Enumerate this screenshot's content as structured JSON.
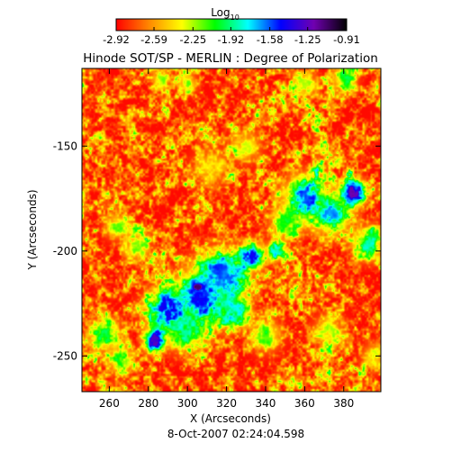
{
  "chart_data": {
    "type": "heatmap",
    "title": "Hinode SOT/SP - MERLIN : Degree of Polarization",
    "xlabel": "X (Arcseconds)",
    "ylabel": "Y (Arcseconds)",
    "footer": "8-Oct-2007 02:24:04.598",
    "colorbar": {
      "label_main": "Log",
      "label_sub": "10",
      "range": [
        -2.92,
        -0.91
      ],
      "tick_values": [
        -2.92,
        -2.59,
        -2.25,
        -1.92,
        -1.58,
        -1.25,
        -0.91
      ],
      "tick_labels": [
        "-2.92",
        "-2.59",
        "-2.25",
        "-1.92",
        "-1.58",
        "-1.25",
        "-0.91"
      ],
      "colormap": [
        "#ff0000",
        "#ff8800",
        "#ffff00",
        "#00ff00",
        "#00ffff",
        "#0000ff",
        "#7000b0",
        "#000000"
      ]
    },
    "xlim": [
      246,
      399
    ],
    "ylim": [
      -267,
      -113
    ],
    "x_ticks": [
      260,
      280,
      300,
      320,
      340,
      360,
      380
    ],
    "x_tick_labels": [
      "260",
      "280",
      "300",
      "320",
      "340",
      "360",
      "380"
    ],
    "y_ticks": [
      -150,
      -200,
      -250
    ],
    "y_tick_labels": [
      "-150",
      "-200",
      "-250"
    ],
    "background_level": -2.9,
    "features": [
      {
        "x": 305,
        "y": -217,
        "level": -0.95,
        "radius": 2.2
      },
      {
        "x": 290,
        "y": -228,
        "level": -1.3,
        "radius": 7
      },
      {
        "x": 308,
        "y": -222,
        "level": -1.35,
        "radius": 9
      },
      {
        "x": 318,
        "y": -212,
        "level": -1.45,
        "radius": 8
      },
      {
        "x": 333,
        "y": -202,
        "level": -1.3,
        "radius": 4
      },
      {
        "x": 345,
        "y": -200,
        "level": -1.6,
        "radius": 3
      },
      {
        "x": 324,
        "y": -228,
        "level": -1.6,
        "radius": 5
      },
      {
        "x": 283,
        "y": -242,
        "level": -1.15,
        "radius": 3.5
      },
      {
        "x": 298,
        "y": -238,
        "level": -1.7,
        "radius": 6
      },
      {
        "x": 360,
        "y": -175,
        "level": -1.4,
        "radius": 7
      },
      {
        "x": 374,
        "y": -182,
        "level": -1.5,
        "radius": 6
      },
      {
        "x": 385,
        "y": -172,
        "level": -1.05,
        "radius": 4
      },
      {
        "x": 392,
        "y": -196,
        "level": -1.7,
        "radius": 5
      },
      {
        "x": 350,
        "y": -186,
        "level": -1.9,
        "radius": 5
      },
      {
        "x": 258,
        "y": -240,
        "level": -1.85,
        "radius": 5
      },
      {
        "x": 266,
        "y": -252,
        "level": -1.9,
        "radius": 4
      },
      {
        "x": 360,
        "y": -120,
        "level": -2.1,
        "radius": 4
      },
      {
        "x": 380,
        "y": -118,
        "level": -1.9,
        "radius": 4
      },
      {
        "x": 300,
        "y": -120,
        "level": -2.0,
        "radius": 3
      },
      {
        "x": 286,
        "y": -118,
        "level": -2.05,
        "radius": 3
      },
      {
        "x": 264,
        "y": -188,
        "level": -2.0,
        "radius": 4
      },
      {
        "x": 274,
        "y": -198,
        "level": -2.05,
        "radius": 4
      },
      {
        "x": 330,
        "y": -150,
        "level": -2.15,
        "radius": 5
      },
      {
        "x": 312,
        "y": -160,
        "level": -2.2,
        "radius": 6
      },
      {
        "x": 340,
        "y": -240,
        "level": -2.0,
        "radius": 5
      },
      {
        "x": 372,
        "y": -238,
        "level": -2.1,
        "radius": 5
      },
      {
        "x": 395,
        "y": -250,
        "level": -2.15,
        "radius": 4
      }
    ]
  }
}
